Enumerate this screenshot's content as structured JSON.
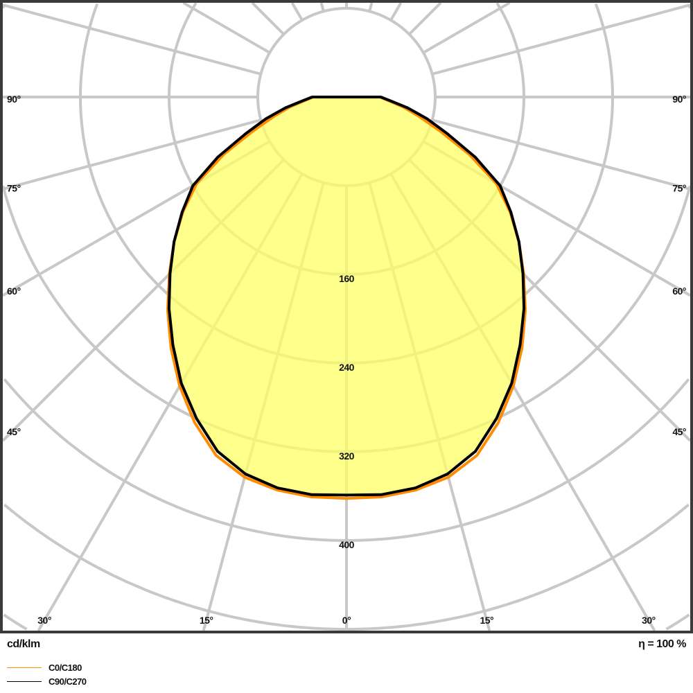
{
  "chart_data": {
    "type": "polar",
    "unit_label": "cd/klm",
    "efficiency_label": "η = 100 %",
    "radial_ticks": [
      80,
      160,
      240,
      320,
      400,
      480,
      560,
      640
    ],
    "radial_tick_labels": [
      "160",
      "240",
      "320",
      "400"
    ],
    "angle_step_deg": 15,
    "side_angle_labels": [
      "90°",
      "75°",
      "60°",
      "45°"
    ],
    "bottom_angle_labels": [
      "30°",
      "15°",
      "0°",
      "15°",
      "30°"
    ],
    "grid": true,
    "fill_color": "#ffff66",
    "angles_deg": [
      0,
      5,
      10,
      15,
      20,
      25,
      30,
      35,
      40,
      45,
      50,
      55,
      60,
      65,
      70,
      75,
      80,
      85,
      90
    ],
    "series": [
      {
        "name": "C0/C180",
        "color": "#ff8c00",
        "values": [
          362,
          362,
          360,
          355,
          344,
          324,
          301,
          276,
          251,
          226,
          203,
          180,
          156,
          122,
          90,
          68,
          52,
          38,
          30
        ]
      },
      {
        "name": "C90/C270",
        "color": "#000000",
        "values": [
          359,
          360,
          358,
          352,
          340,
          320,
          298,
          273,
          249,
          225,
          203,
          181,
          160,
          128,
          97,
          75,
          56,
          40,
          31
        ]
      }
    ],
    "legend_placement": "bottom-left"
  }
}
